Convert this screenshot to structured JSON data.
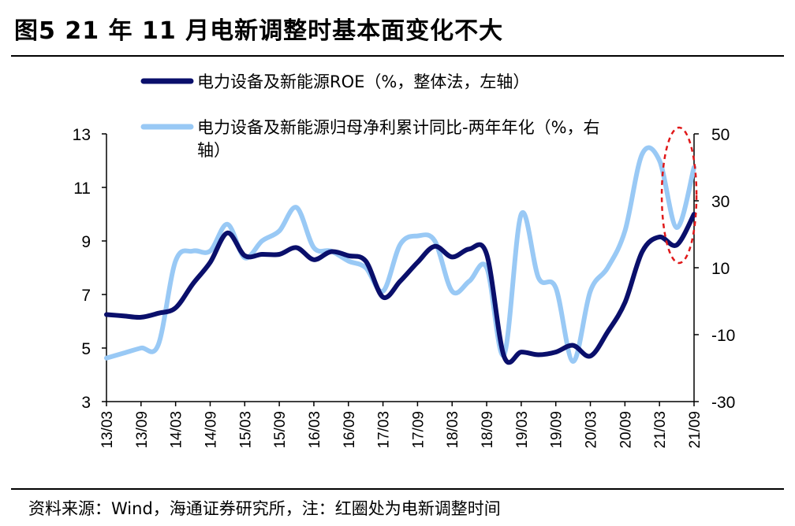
{
  "title": "图5  21 年 11 月电新调整时基本面变化不大",
  "source": "资料来源：Wind，海通证券研究所，注：红圈处为电新调整时间",
  "colors": {
    "roe": "#0a0f6b",
    "profit": "#99c9f5",
    "highlight": "#e0191a"
  },
  "chart_data": {
    "type": "line",
    "x_ticks": [
      "13/03",
      "13/09",
      "14/03",
      "14/09",
      "15/03",
      "15/09",
      "16/03",
      "16/09",
      "17/03",
      "17/09",
      "18/03",
      "18/09",
      "19/03",
      "19/09",
      "20/03",
      "20/09",
      "21/03",
      "21/09"
    ],
    "y_left": {
      "lim": [
        3,
        13
      ],
      "ticks": [
        3,
        5,
        7,
        9,
        11,
        13
      ]
    },
    "y_right": {
      "lim": [
        -30,
        50
      ],
      "ticks": [
        -30,
        -10,
        10,
        30,
        50
      ]
    },
    "grid": false,
    "legend_position": "top",
    "highlight": {
      "shape": "dashed-ellipse",
      "x_range": [
        "21/03",
        "21/09"
      ]
    },
    "series": [
      {
        "name": "电力设备及新能源ROE（%，整体法，左轴）",
        "axis": "left",
        "x": [
          "13/03",
          "13/06",
          "13/09",
          "13/12",
          "14/03",
          "14/06",
          "14/09",
          "14/12",
          "15/03",
          "15/06",
          "15/09",
          "15/12",
          "16/03",
          "16/06",
          "16/09",
          "16/12",
          "17/03",
          "17/06",
          "17/09",
          "17/12",
          "18/03",
          "18/06",
          "18/09",
          "18/12",
          "19/03",
          "19/06",
          "19/09",
          "19/12",
          "20/03",
          "20/06",
          "20/09",
          "20/12",
          "21/03",
          "21/06",
          "21/09"
        ],
        "values": [
          6.25,
          6.2,
          6.15,
          6.3,
          6.5,
          7.4,
          8.2,
          9.3,
          8.45,
          8.5,
          8.5,
          8.75,
          8.3,
          8.6,
          8.45,
          8.25,
          6.9,
          7.5,
          8.2,
          8.8,
          8.4,
          8.7,
          8.5,
          4.7,
          4.85,
          4.75,
          4.85,
          5.1,
          4.7,
          5.6,
          6.7,
          8.6,
          9.15,
          8.85,
          10.0
        ]
      },
      {
        "name": "电力设备及新能源归母净利累计同比-两年年化（%，右轴）",
        "axis": "right",
        "x": [
          "13/03",
          "13/06",
          "13/09",
          "13/12",
          "14/03",
          "14/06",
          "14/09",
          "14/12",
          "15/03",
          "15/06",
          "15/09",
          "15/12",
          "16/03",
          "16/06",
          "16/09",
          "16/12",
          "17/03",
          "17/06",
          "17/09",
          "17/12",
          "18/03",
          "18/06",
          "18/09",
          "18/12",
          "19/03",
          "19/06",
          "19/09",
          "19/12",
          "20/03",
          "20/06",
          "20/09",
          "20/12",
          "21/03",
          "21/06",
          "21/09"
        ],
        "values": [
          -17,
          -15.5,
          -14,
          -13,
          12,
          15,
          15,
          23,
          13,
          18,
          21,
          28,
          16,
          15,
          12,
          10,
          3,
          17,
          19.5,
          18,
          3,
          6,
          10,
          -16,
          26,
          7,
          4,
          -18,
          3,
          10,
          21,
          44,
          42,
          22,
          40
        ]
      }
    ]
  }
}
